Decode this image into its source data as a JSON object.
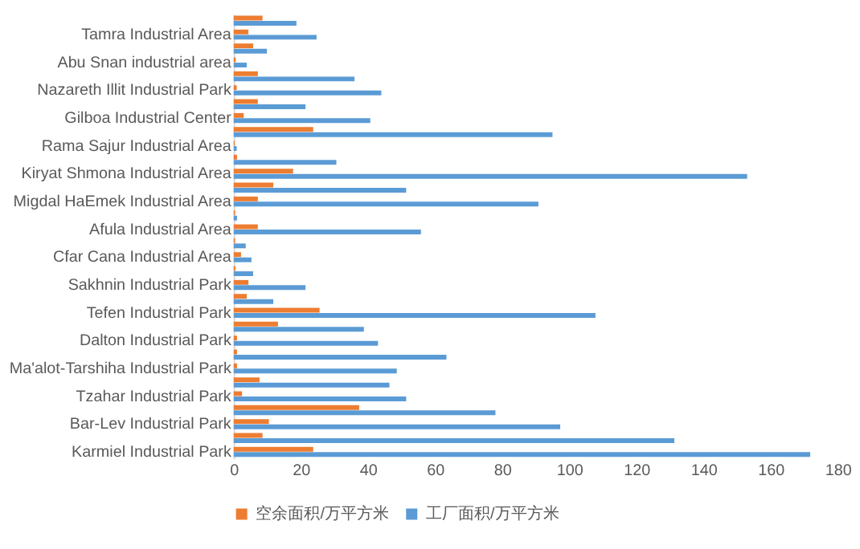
{
  "chart_data": {
    "type": "bar",
    "orientation": "horizontal",
    "legend": "bottom",
    "grid": false,
    "categories": [
      null,
      "Tamra Industrial Area",
      null,
      "Abu Snan industrial area",
      null,
      "Nazareth Illit Industrial Park",
      null,
      "Gilboa Industrial Center",
      null,
      "Rama Sajur Industrial Area",
      null,
      "Kiryat Shmona Industrial Area",
      null,
      "Migdal HaEmek Industrial Area",
      null,
      "Afula Industrial Area",
      null,
      "Cfar Cana Industrial Area",
      null,
      "Sakhnin Industrial Park",
      null,
      "Tefen Industrial Park",
      null,
      "Dalton Industrial Park",
      null,
      "Ma'alot-Tarshiha Industrial Park",
      null,
      "Tzahar Industrial Park",
      null,
      "Bar-Lev Industrial Park",
      null,
      "Karmiel Industrial Park"
    ],
    "series": [
      {
        "name": "空余面积/万平方米",
        "color": "#ed7d31",
        "values": [
          8.6,
          4.4,
          5.8,
          0.6,
          7.2,
          0.9,
          7.2,
          3,
          23.7,
          0.3,
          1,
          17.7,
          11.8,
          7.2,
          0.4,
          7.2,
          0.4,
          2.2,
          0.5,
          4.4,
          3.9,
          25.6,
          13.2,
          1,
          1,
          1,
          7.7,
          2.5,
          37.4,
          10.5,
          8.6,
          23.7
        ]
      },
      {
        "name": "工厂面积/万平方米",
        "color": "#5b9bd5",
        "values": [
          18.7,
          24.7,
          9.9,
          3.9,
          36,
          44,
          21.4,
          40.7,
          95,
          0.9,
          30.6,
          153,
          51.4,
          90.8,
          1,
          55.8,
          3.6,
          5.3,
          5.8,
          21.4,
          11.8,
          107.8,
          38.8,
          43,
          63.4,
          48.6,
          46.4,
          51.4,
          78,
          97.3,
          131.3,
          171.8
        ]
      }
    ],
    "xlim": [
      0,
      180
    ],
    "xticks": [
      0,
      20,
      40,
      60,
      80,
      100,
      120,
      140,
      160,
      180
    ]
  }
}
